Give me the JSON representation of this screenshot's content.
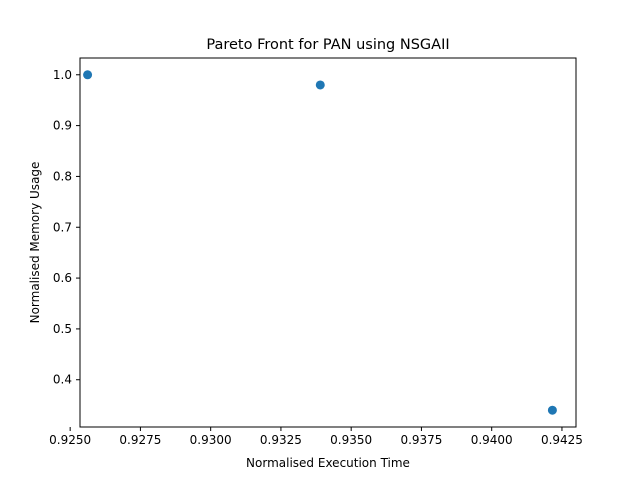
{
  "chart_data": {
    "type": "scatter",
    "title": "Pareto Front for PAN using NSGAII",
    "xlabel": "Normalised Execution Time",
    "ylabel": "Normalised Memory Usage",
    "xlim": [
      0.92535,
      0.943
    ],
    "ylim": [
      0.307,
      1.033
    ],
    "xticks": [
      0.925,
      0.9275,
      0.93,
      0.9325,
      0.935,
      0.9375,
      0.94,
      0.9425
    ],
    "xtick_labels": [
      "0.9250",
      "0.9275",
      "0.9300",
      "0.9325",
      "0.9350",
      "0.9375",
      "0.9400",
      "0.9425"
    ],
    "yticks": [
      0.4,
      0.5,
      0.6,
      0.7,
      0.8,
      0.9,
      1.0
    ],
    "ytick_labels": [
      "0.4",
      "0.5",
      "0.6",
      "0.7",
      "0.8",
      "0.9",
      "1.0"
    ],
    "grid": false,
    "marker_color": "#1f77b4",
    "series": [
      {
        "points": [
          {
            "x": 0.92562,
            "y": 1.0
          },
          {
            "x": 0.9339,
            "y": 0.98
          },
          {
            "x": 0.94216,
            "y": 0.34
          }
        ]
      }
    ]
  }
}
